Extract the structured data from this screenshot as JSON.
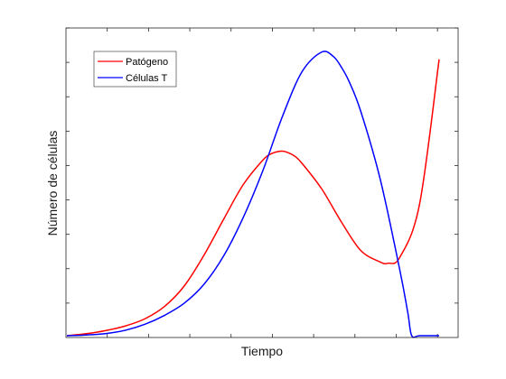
{
  "chart_data": {
    "type": "line",
    "title": "",
    "xlabel": "Tiempo",
    "ylabel": "Número de células",
    "xlim": [
      0,
      1
    ],
    "ylim": [
      0,
      1
    ],
    "xticks_labeled": false,
    "yticks_labeled": false,
    "grid": false,
    "box": true,
    "legend": {
      "placement": "top-left"
    },
    "series": [
      {
        "name": "Patógeno",
        "color": "#ff0000",
        "x": [
          0.0,
          0.05,
          0.1,
          0.15,
          0.2,
          0.25,
          0.3,
          0.35,
          0.4,
          0.45,
          0.5,
          0.52,
          0.54,
          0.55,
          0.56,
          0.58,
          0.6,
          0.65,
          0.7,
          0.75,
          0.8,
          0.82,
          0.85,
          0.9,
          0.95
        ],
        "y": [
          0.0,
          0.007,
          0.018,
          0.034,
          0.059,
          0.102,
          0.173,
          0.279,
          0.403,
          0.523,
          0.608,
          0.629,
          0.638,
          0.639,
          0.636,
          0.623,
          0.597,
          0.509,
          0.395,
          0.295,
          0.255,
          0.251,
          0.272,
          0.455,
          0.957
        ]
      },
      {
        "name": "Células T",
        "color": "#0000ff",
        "x": [
          0.0,
          0.05,
          0.1,
          0.15,
          0.2,
          0.25,
          0.3,
          0.35,
          0.4,
          0.45,
          0.5,
          0.55,
          0.6,
          0.65,
          0.68,
          0.7,
          0.72,
          0.75,
          0.8,
          0.85,
          0.87,
          0.88,
          0.9,
          0.95
        ],
        "y": [
          0.0,
          0.0025,
          0.0075,
          0.019,
          0.04,
          0.071,
          0.113,
          0.178,
          0.276,
          0.409,
          0.571,
          0.759,
          0.914,
          0.982,
          0.967,
          0.931,
          0.881,
          0.777,
          0.54,
          0.225,
          0.08,
          0.0,
          0.0,
          0.0
        ]
      }
    ]
  }
}
